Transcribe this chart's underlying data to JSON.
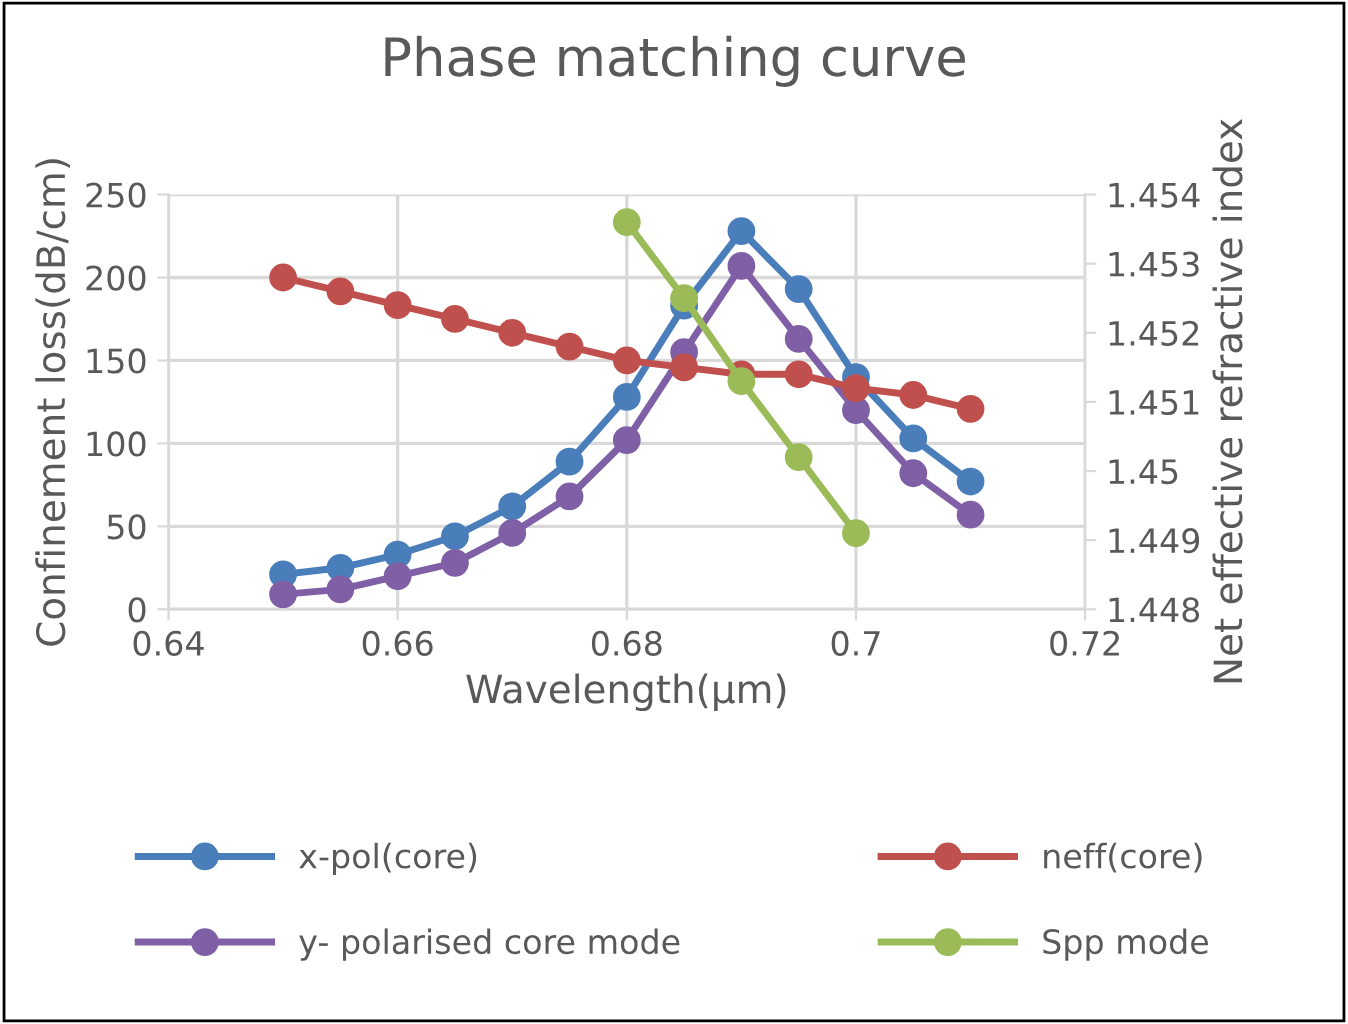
{
  "chart_data": {
    "type": "line",
    "title": "Phase matching curve",
    "xlabel": "Wavelength(µm)",
    "ylabel": "Confinement loss(dB/cm)",
    "y2label": "Net effective refractive index",
    "xlim": [
      0.64,
      0.72
    ],
    "xticks": [
      0.64,
      0.66,
      0.68,
      0.7,
      0.72
    ],
    "ylim": [
      0,
      250
    ],
    "yticks": [
      0,
      50,
      100,
      150,
      200,
      250
    ],
    "y2lim": [
      1.448,
      1.454
    ],
    "y2ticks": [
      1.448,
      1.449,
      1.45,
      1.451,
      1.452,
      1.453,
      1.454
    ],
    "grid": true,
    "legend": "bottom",
    "marker": "circle",
    "line_style": "solid",
    "series": [
      {
        "name": "x-pol(core)",
        "color": "#4a7ebb",
        "x": [
          0.65,
          0.655,
          0.66,
          0.665,
          0.67,
          0.675,
          0.68,
          0.685,
          0.69,
          0.695,
          0.7,
          0.705,
          0.71
        ],
        "values": [
          21,
          25,
          33,
          44,
          62,
          89,
          128,
          183,
          228,
          193,
          140,
          103,
          77
        ]
      },
      {
        "name": "y- polarised core mode",
        "color": "#7f5fa5",
        "x": [
          0.65,
          0.655,
          0.66,
          0.665,
          0.67,
          0.675,
          0.68,
          0.685,
          0.69,
          0.695,
          0.7,
          0.705,
          0.71
        ],
        "values": [
          9,
          12,
          20,
          28,
          46,
          68,
          102,
          155,
          207,
          163,
          120,
          82,
          57
        ]
      },
      {
        "name": "neff(core)",
        "color": "#c0504d",
        "axis": "y2",
        "x": [
          0.65,
          0.655,
          0.66,
          0.665,
          0.67,
          0.675,
          0.68,
          0.685,
          0.69,
          0.695,
          0.7,
          0.705,
          0.71
        ],
        "values": [
          1.4528,
          1.4526,
          1.4524,
          1.4522,
          1.452,
          1.4518,
          1.4516,
          1.4515,
          1.4514,
          1.4514,
          1.4512,
          1.4511,
          1.4509
        ]
      },
      {
        "name": "Spp mode",
        "color": "#9bbb59",
        "axis": "y2",
        "x": [
          0.68,
          0.685,
          0.69,
          0.695,
          0.7
        ],
        "values": [
          1.4536,
          1.4525,
          1.4513,
          1.4502,
          1.4491
        ]
      }
    ]
  }
}
